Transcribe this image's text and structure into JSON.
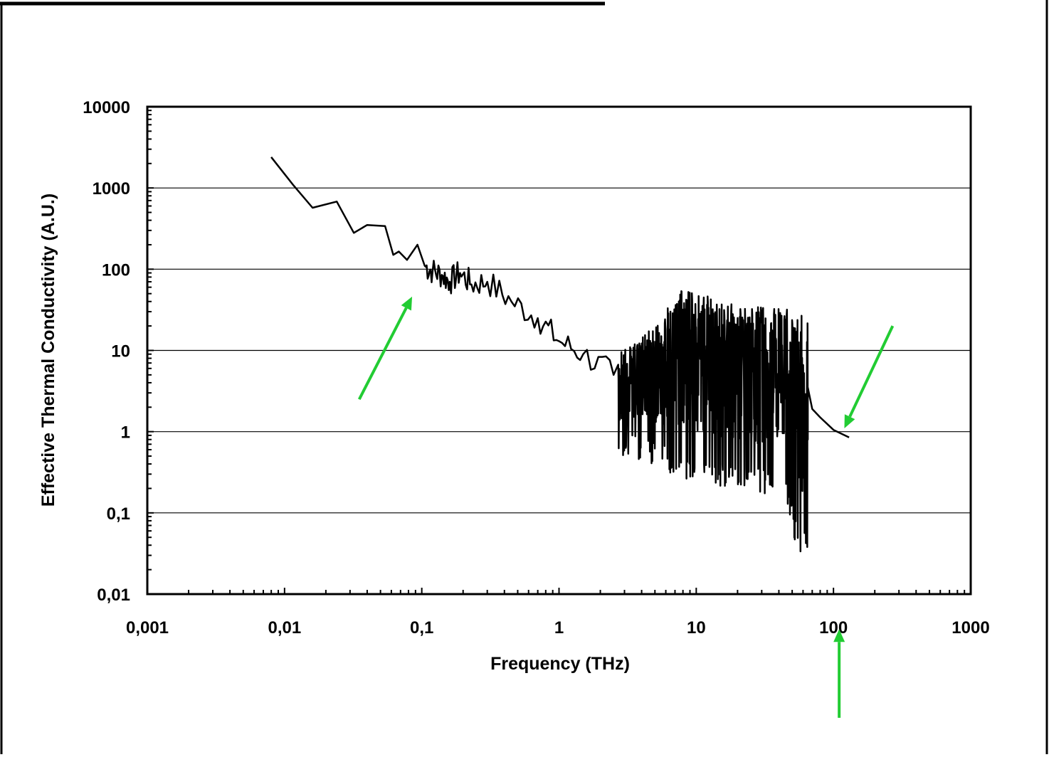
{
  "chart_data": {
    "type": "line",
    "title": "",
    "xlabel": "Frequency (THz)",
    "ylabel": "Effective Thermal Conductivity (A.U.)",
    "x_scale": "log",
    "y_scale": "log",
    "xlim": [
      0.001,
      1000
    ],
    "ylim": [
      0.01,
      10000
    ],
    "x_tick_labels": [
      "0,001",
      "0,01",
      "0,1",
      "1",
      "10",
      "100",
      "1000"
    ],
    "y_tick_labels": [
      "10000",
      "1000",
      "100",
      "10",
      "1",
      "0,1",
      "0,01"
    ],
    "grid": "horizontal major gridlines",
    "legend": "none",
    "line_color": "#000000",
    "annotation_color": "#22cc33",
    "series": [
      {
        "smooth_points": [
          [
            0.008,
            2400
          ],
          [
            0.0115,
            1100
          ],
          [
            0.016,
            570
          ],
          [
            0.024,
            680
          ],
          [
            0.032,
            280
          ],
          [
            0.04,
            350
          ],
          [
            0.054,
            340
          ],
          [
            0.062,
            150
          ],
          [
            0.068,
            165
          ],
          [
            0.078,
            130
          ],
          [
            0.093,
            200
          ],
          [
            0.105,
            110
          ],
          [
            0.12,
            95
          ],
          [
            0.14,
            85
          ],
          [
            0.16,
            70
          ],
          [
            0.19,
            90
          ],
          [
            0.23,
            65
          ],
          [
            0.3,
            70
          ],
          [
            0.45,
            40
          ],
          [
            0.7,
            25
          ],
          [
            1.0,
            13
          ],
          [
            1.5,
            9
          ],
          [
            2.5,
            5
          ]
        ],
        "noisy_band": {
          "x_range": [
            2.7,
            65
          ],
          "upper_envelope": [
            [
              2.7,
              10
            ],
            [
              5,
              20
            ],
            [
              8,
              60
            ],
            [
              20,
              35
            ],
            [
              45,
              35
            ],
            [
              60,
              30
            ]
          ],
          "lower_envelope": [
            [
              2.7,
              0.5
            ],
            [
              5,
              0.4
            ],
            [
              8,
              0.25
            ],
            [
              20,
              0.2
            ],
            [
              45,
              0.15
            ],
            [
              55,
              0.03
            ],
            [
              60,
              0.03
            ]
          ]
        },
        "tail_points": [
          [
            65,
            3.5
          ],
          [
            70,
            1.9
          ],
          [
            80,
            1.5
          ],
          [
            100,
            1.05
          ],
          [
            130,
            0.85
          ]
        ]
      }
    ],
    "annotations": [
      {
        "type": "arrow",
        "description": "green arrow pointing up-right at curve",
        "from": [
          0.035,
          2.5
        ],
        "to": [
          0.085,
          46
        ]
      },
      {
        "type": "arrow",
        "description": "green arrow pointing down-left at curve tail",
        "from": [
          270,
          20
        ],
        "to": [
          120,
          1.1
        ]
      },
      {
        "type": "arrow",
        "description": "green arrow pointing up at x tick 100",
        "from": [
          110,
          0.0003
        ],
        "to": [
          110,
          0.0037
        ]
      }
    ]
  }
}
